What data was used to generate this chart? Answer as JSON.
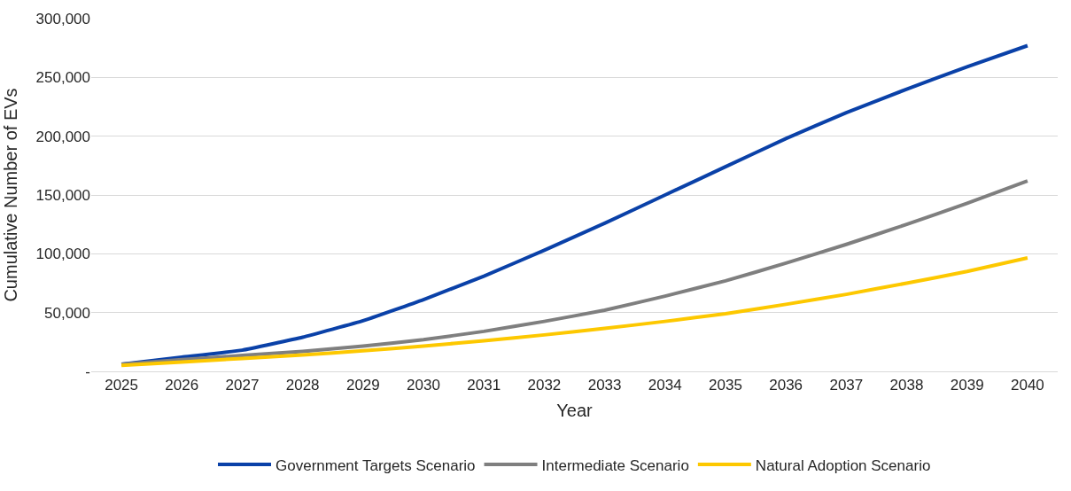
{
  "chart_data": {
    "type": "line",
    "xlabel": "Year",
    "ylabel": "Cumulative Number of EVs",
    "categories": [
      "2025",
      "2026",
      "2027",
      "2028",
      "2029",
      "2030",
      "2031",
      "2032",
      "2033",
      "2034",
      "2035",
      "2036",
      "2037",
      "2038",
      "2039",
      "2040"
    ],
    "series": [
      {
        "name": "Government Targets Scenario",
        "color": "#0a41a8",
        "values": [
          6000,
          12000,
          18000,
          29000,
          43000,
          61000,
          81000,
          103000,
          126000,
          150000,
          174000,
          198000,
          220000,
          240000,
          259000,
          277000
        ]
      },
      {
        "name": "Intermediate Scenario",
        "color": "#7f7f7f",
        "values": [
          6000,
          10000,
          13500,
          17000,
          21500,
          27000,
          34000,
          42500,
          52000,
          64000,
          77000,
          92000,
          108000,
          125000,
          143000,
          162000
        ]
      },
      {
        "name": "Natural Adoption Scenario",
        "color": "#fdc800",
        "values": [
          5000,
          8000,
          11000,
          14000,
          17500,
          21500,
          26000,
          31000,
          36500,
          42500,
          49000,
          57000,
          65500,
          75000,
          85000,
          96500
        ]
      }
    ],
    "ylim": [
      0,
      300000
    ],
    "yticks": [
      {
        "value": 0,
        "label": "-"
      },
      {
        "value": 50000,
        "label": "50,000"
      },
      {
        "value": 100000,
        "label": "100,000"
      },
      {
        "value": 150000,
        "label": "150,000"
      },
      {
        "value": 200000,
        "label": "200,000"
      },
      {
        "value": 250000,
        "label": "250,000"
      },
      {
        "value": 300000,
        "label": "300,000"
      }
    ],
    "grid": "y",
    "legend": "bottom",
    "marker": "none",
    "line_style": "solid"
  }
}
